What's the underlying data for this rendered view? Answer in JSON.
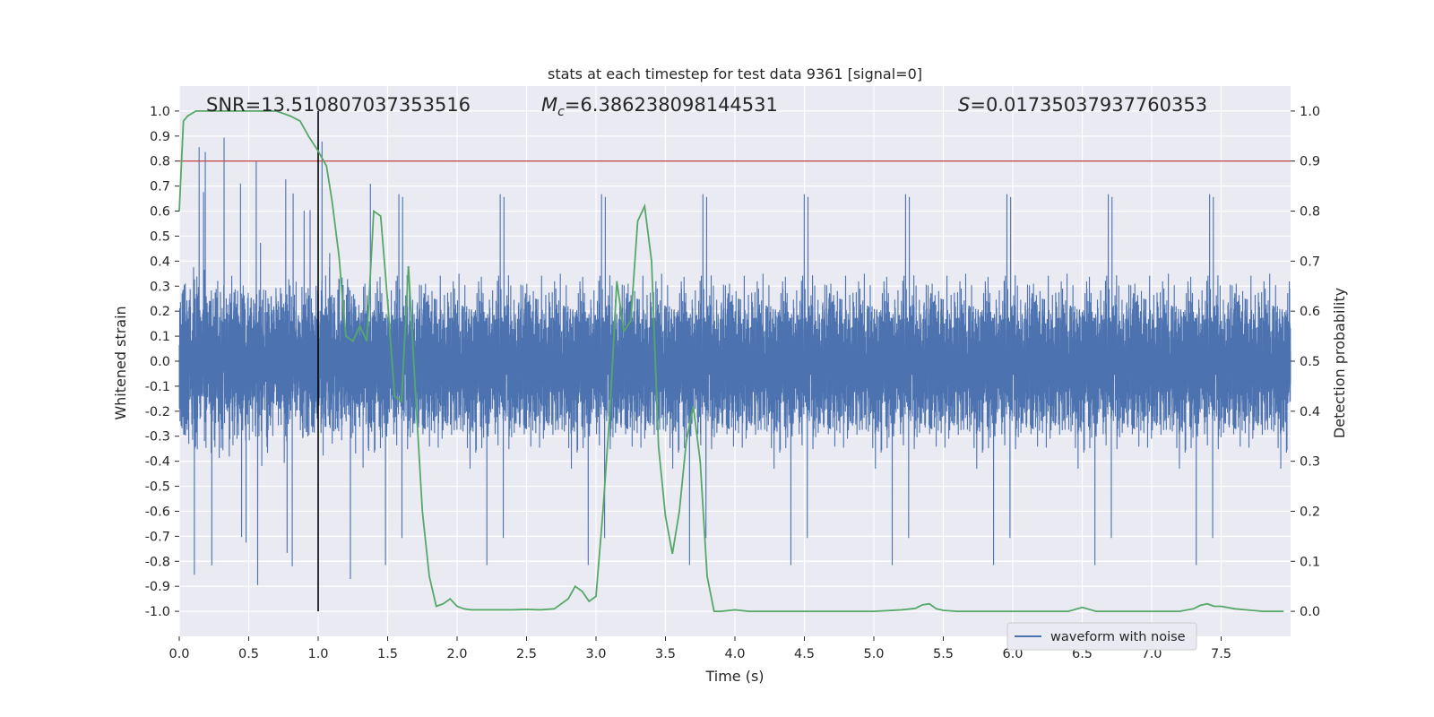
{
  "chart_data": {
    "type": "line",
    "title": "stats at each timestep for test data 9361 [signal=0]",
    "xlabel": "Time (s)",
    "ylabel": "Whitened strain",
    "y2label": "Detection probability",
    "xlim": [
      0.0,
      8.0
    ],
    "ylim": [
      -1.1,
      1.1
    ],
    "y2lim": [
      -0.05,
      1.05
    ],
    "x_ticks": [
      "0.0",
      "0.5",
      "1.0",
      "1.5",
      "2.0",
      "2.5",
      "3.0",
      "3.5",
      "4.0",
      "4.5",
      "5.0",
      "5.5",
      "6.0",
      "6.5",
      "7.0",
      "7.5"
    ],
    "y_ticks": [
      "1.0",
      "0.9",
      "0.8",
      "0.7",
      "0.6",
      "0.5",
      "0.4",
      "0.3",
      "0.2",
      "0.1",
      "0.0",
      "-0.1",
      "-0.2",
      "-0.3",
      "-0.4",
      "-0.5",
      "-0.6",
      "-0.7",
      "-0.8",
      "-0.9",
      "-1.0"
    ],
    "y2_ticks": [
      "1.0",
      "0.9",
      "0.8",
      "0.7",
      "0.6",
      "0.5",
      "0.4",
      "0.3",
      "0.2",
      "0.1",
      "0.0"
    ],
    "grid": true,
    "legend_position": "lower-right",
    "annotations": {
      "snr": "SNR=13.510807037353516",
      "mc_symbol": "M",
      "mc_sub": "c",
      "mc_value": "=6.386238098144531",
      "s_symbol": "S",
      "s_value": "=0.01735037937760353"
    },
    "threshold_y2": 0.9,
    "marker_x": 1.0,
    "series": [
      {
        "name": "waveform with noise",
        "color": "#4c72b0",
        "kind": "noise-waveform",
        "sample_rate": 2048,
        "duration": 8.0,
        "typical_amplitude": [
          -0.38,
          0.4
        ],
        "peak_range": [
          -0.98,
          0.95
        ]
      },
      {
        "color": "#55a868",
        "kind": "detection-probability",
        "x": [
          0.0,
          0.03,
          0.06,
          0.12,
          0.2,
          0.3,
          0.4,
          0.5,
          0.6,
          0.7,
          0.8,
          0.87,
          0.93,
          1.0,
          1.06,
          1.1,
          1.15,
          1.18,
          1.2,
          1.25,
          1.3,
          1.35,
          1.4,
          1.45,
          1.5,
          1.55,
          1.6,
          1.65,
          1.7,
          1.75,
          1.8,
          1.85,
          1.9,
          1.95,
          2.0,
          2.05,
          2.1,
          2.2,
          2.3,
          2.4,
          2.5,
          2.6,
          2.7,
          2.8,
          2.85,
          2.9,
          2.95,
          3.0,
          3.05,
          3.1,
          3.15,
          3.2,
          3.25,
          3.3,
          3.35,
          3.4,
          3.45,
          3.5,
          3.55,
          3.6,
          3.65,
          3.7,
          3.75,
          3.8,
          3.85,
          3.9,
          4.0,
          4.1,
          4.2,
          4.4,
          4.6,
          4.8,
          5.0,
          5.2,
          5.3,
          5.35,
          5.4,
          5.45,
          5.5,
          5.6,
          5.8,
          6.0,
          6.2,
          6.4,
          6.5,
          6.6,
          6.8,
          7.0,
          7.2,
          7.3,
          7.35,
          7.4,
          7.45,
          7.5,
          7.6,
          7.8,
          7.95
        ],
        "y": [
          0.8,
          0.98,
          0.99,
          1.0,
          1.0,
          1.0,
          1.0,
          1.0,
          1.0,
          1.0,
          0.99,
          0.98,
          0.95,
          0.92,
          0.89,
          0.82,
          0.71,
          0.61,
          0.55,
          0.54,
          0.57,
          0.54,
          0.8,
          0.79,
          0.62,
          0.43,
          0.42,
          0.69,
          0.44,
          0.2,
          0.07,
          0.01,
          0.015,
          0.025,
          0.01,
          0.005,
          0.003,
          0.003,
          0.003,
          0.003,
          0.004,
          0.003,
          0.005,
          0.025,
          0.05,
          0.04,
          0.02,
          0.03,
          0.2,
          0.4,
          0.66,
          0.56,
          0.58,
          0.78,
          0.81,
          0.7,
          0.33,
          0.19,
          0.115,
          0.2,
          0.34,
          0.41,
          0.3,
          0.07,
          0.0,
          0.0,
          0.003,
          0.0,
          0.0,
          0.0,
          0.0,
          0.0,
          0.0,
          0.003,
          0.006,
          0.013,
          0.015,
          0.005,
          0.002,
          0.0,
          0.0,
          0.0,
          0.0,
          0.0,
          0.008,
          0.0,
          0.0,
          0.0,
          0.0,
          0.005,
          0.012,
          0.015,
          0.01,
          0.01,
          0.005,
          0.0,
          0.0
        ]
      }
    ]
  }
}
